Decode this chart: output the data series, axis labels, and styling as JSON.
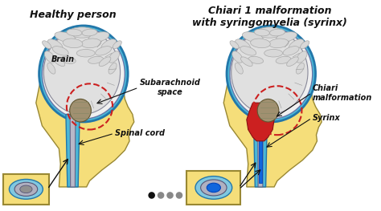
{
  "bg_color": "#ffffff",
  "title_left": "Healthy person",
  "title_right": "Chiari 1 malformation\nwith syringomyelia (syrinx)",
  "label_brain": "Brain",
  "label_subarachnoid": "Subarachnoid\nspace",
  "label_spinal_cord": "Spinal cord",
  "label_chiari": "Chiari\nmalformation",
  "label_syrinx": "Syrinx",
  "skin_color": "#f5de7a",
  "skull_color": "#f0f0f0",
  "brain_color": "#e0e0e0",
  "brain_fold_color": "#c8c8c8",
  "csf_color": "#4ab8d8",
  "spinal_cord_color": "#b8b8c8",
  "brainstem_color": "#a09070",
  "red_tissue_color": "#cc2020",
  "dashed_circle_color": "#cc2020",
  "annotation_color": "#111111",
  "dot_colors": [
    "#111111",
    "#888888",
    "#888888",
    "#888888"
  ],
  "inset_bg": "#f5de7a",
  "title_fontsize": 9,
  "label_fontsize": 7
}
